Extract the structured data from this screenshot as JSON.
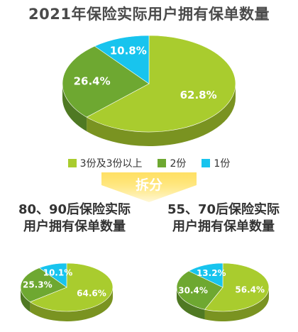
{
  "chart_data": [
    {
      "type": "pie",
      "title": "2021年保险实际用户拥有保单数量",
      "categories": [
        "3份及3份以上",
        "2份",
        "1份"
      ],
      "values": [
        62.8,
        26.4,
        10.8
      ],
      "labels": [
        "62.8%",
        "26.4%",
        "10.8%"
      ],
      "colors": [
        "#a9cc2e",
        "#6ea831",
        "#18c4ee"
      ],
      "legend": "bottom"
    },
    {
      "type": "pie",
      "title": "80、90后保险实际用户拥有保单数量",
      "categories": [
        "3份及3份以上",
        "2份",
        "1份"
      ],
      "values": [
        64.6,
        25.3,
        10.1
      ],
      "labels": [
        "64.6%",
        "25.3%",
        "10.1%"
      ],
      "colors": [
        "#a9cc2e",
        "#6ea831",
        "#18c4ee"
      ]
    },
    {
      "type": "pie",
      "title": "55、70后保险实际用户拥有保单数量",
      "categories": [
        "3份及3份以上",
        "2份",
        "1份"
      ],
      "values": [
        56.4,
        30.4,
        13.2
      ],
      "labels": [
        "56.4%",
        "30.4%",
        "13.2%"
      ],
      "colors": [
        "#a9cc2e",
        "#6ea831",
        "#18c4ee"
      ]
    }
  ],
  "header": {
    "title": "2021年保险实际用户拥有保单数量"
  },
  "legend": {
    "items": [
      {
        "label": "3份及3份以上",
        "color": "#a9cc2e"
      },
      {
        "label": "2份",
        "color": "#6ea831"
      },
      {
        "label": "1份",
        "color": "#18c4ee"
      }
    ]
  },
  "split_label": "拆分",
  "sub_titles": {
    "left_line1": "80、90后保险实际",
    "left_line2": "用户拥有保单数量",
    "right_line1": "55、70后保险实际",
    "right_line2": "用户拥有保单数量"
  }
}
